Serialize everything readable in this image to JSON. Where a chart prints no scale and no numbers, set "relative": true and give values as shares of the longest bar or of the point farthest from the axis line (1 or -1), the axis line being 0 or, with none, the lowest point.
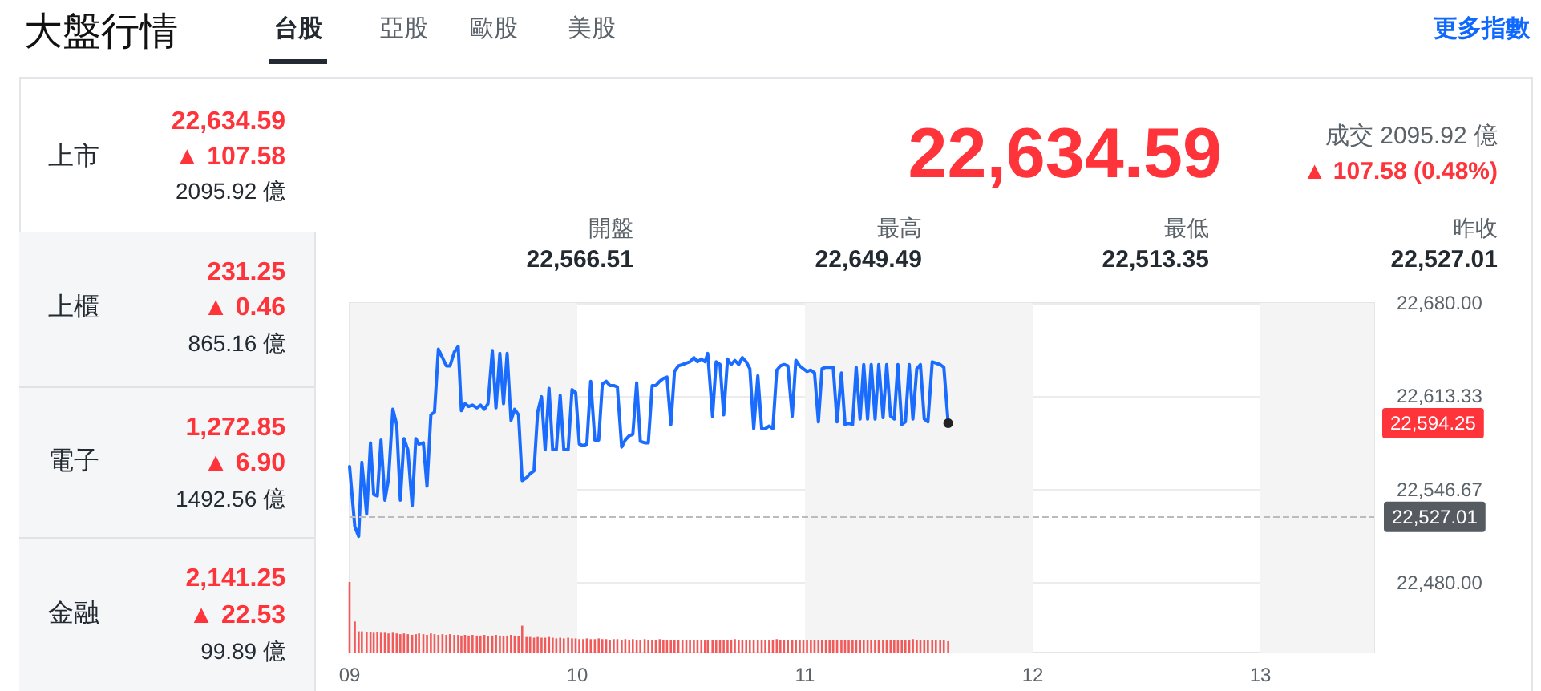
{
  "chart_data": [
    {
      "type": "line",
      "title": "大盤行情",
      "x": [
        9.0,
        9.023,
        9.04,
        9.054,
        9.075,
        9.092,
        9.106,
        9.122,
        9.138,
        9.155,
        9.171,
        9.19,
        9.207,
        9.223,
        9.239,
        9.256,
        9.275,
        9.291,
        9.305,
        9.324,
        9.34,
        9.357,
        9.373,
        9.39,
        9.408,
        9.425,
        9.441,
        9.46,
        9.477,
        9.491,
        9.507,
        9.523,
        9.54,
        9.559,
        9.575,
        9.592,
        9.608,
        9.627,
        9.643,
        9.66,
        9.676,
        9.692,
        9.709,
        9.725,
        9.742,
        9.758,
        9.777,
        9.793,
        9.81,
        9.826,
        9.843,
        9.859,
        9.876,
        9.892,
        9.908,
        9.925,
        9.941,
        9.96,
        9.977,
        9.993,
        10.009,
        10.026,
        10.042,
        10.059,
        10.077,
        10.094,
        10.11,
        10.127,
        10.143,
        10.16,
        10.176,
        10.195,
        10.211,
        10.228,
        10.244,
        10.261,
        10.277,
        10.296,
        10.312,
        10.329,
        10.345,
        10.362,
        10.378,
        10.394,
        10.411,
        10.427,
        10.444,
        10.462,
        10.479,
        10.495,
        10.512,
        10.528,
        10.545,
        10.561,
        10.573,
        10.594,
        10.61,
        10.627,
        10.643,
        10.66,
        10.676,
        10.692,
        10.709,
        10.725,
        10.742,
        10.758,
        10.775,
        10.793,
        10.81,
        10.826,
        10.843,
        10.859,
        10.876,
        10.892,
        10.908,
        10.925,
        10.944,
        10.96,
        10.977,
        10.993,
        11.009,
        11.026,
        11.042,
        11.059,
        11.075,
        11.092,
        11.108,
        11.124,
        11.141,
        11.16,
        11.176,
        11.192,
        11.209,
        11.225,
        11.242,
        11.258,
        11.275,
        11.291,
        11.308,
        11.324,
        11.343,
        11.359,
        11.376,
        11.392,
        11.408,
        11.425,
        11.441,
        11.458,
        11.474,
        11.491,
        11.507,
        11.524,
        11.54,
        11.559,
        11.575,
        11.594,
        11.61,
        11.629
      ],
      "series": [
        {
          "color": "#1a6cff",
          "values": [
            22563,
            22520,
            22513,
            22566,
            22529,
            22580,
            22543,
            22542,
            22582,
            22539,
            22554,
            22604,
            22593,
            22539,
            22583,
            22575,
            22535,
            22583,
            22579,
            22580,
            22549,
            22600,
            22602,
            22647,
            22641,
            22635,
            22635,
            22645,
            22649,
            22603,
            22608,
            22606,
            22607,
            22605,
            22607,
            22604,
            22608,
            22646,
            22605,
            22644,
            22608,
            22644,
            22596,
            22604,
            22600,
            22553,
            22555,
            22558,
            22560,
            22602,
            22613,
            22575,
            22619,
            22575,
            22575,
            22614,
            22575,
            22575,
            22618,
            22616,
            22579,
            22578,
            22579,
            22624,
            22582,
            22582,
            22622,
            22624,
            22621,
            22621,
            22620,
            22577,
            22582,
            22585,
            22586,
            22623,
            22581,
            22580,
            22580,
            22621,
            22621,
            22624,
            22626,
            22627,
            22593,
            22631,
            22635,
            22636,
            22637,
            22638,
            22641,
            22638,
            22640,
            22638,
            22644,
            22599,
            22638,
            22636,
            22600,
            22640,
            22636,
            22639,
            22636,
            22641,
            22638,
            22633,
            22590,
            22628,
            22590,
            22590,
            22592,
            22590,
            22632,
            22635,
            22636,
            22635,
            22599,
            22639,
            22635,
            22633,
            22631,
            22632,
            22630,
            22595,
            22633,
            22634,
            22634,
            22634,
            22595,
            22630,
            22593,
            22594,
            22593,
            22634,
            22597,
            22636,
            22597,
            22636,
            22597,
            22636,
            22598,
            22636,
            22599,
            22597,
            22636,
            22593,
            22595,
            22636,
            22597,
            22633,
            22636,
            22597,
            22595,
            22638,
            22637,
            22636,
            22634,
            22594
          ]
        }
      ],
      "xlim": [
        9,
        13.5
      ],
      "xticks": [
        {
          "value": 9,
          "label": "09"
        },
        10,
        11,
        12,
        13
      ],
      "ylim": [
        22430,
        22680
      ],
      "yticks": [
        {
          "value": 22480,
          "label": "22,480.00"
        },
        {
          "value": 22546.67,
          "label": "22,546.67"
        },
        {
          "value": 22613.33,
          "label": "22,613.33"
        },
        {
          "value": 22680,
          "label": "22,680.00"
        }
      ],
      "grid": "y",
      "ref_lines": [
        {
          "axis": "y",
          "value": 22527.01,
          "label": "22,527.01",
          "color": "#bbbbbb",
          "line_style": "dashed"
        }
      ],
      "bands": [
        {
          "axis": "x",
          "from": 9,
          "to": 10,
          "color": "#f4f4f4"
        },
        {
          "axis": "x",
          "from": 11,
          "to": 12,
          "color": "#f4f4f4"
        },
        {
          "axis": "x",
          "from": 13,
          "to": 13.5,
          "color": "#f4f4f4"
        }
      ],
      "annotations": [
        "台股",
        "亞股",
        "歐股",
        "美股",
        "更多指數",
        "上市",
        "22,634.59",
        "▲ 107.58",
        "2095.92 億",
        "上櫃",
        "231.25",
        "▲ 0.46",
        "865.16 億",
        "電子",
        "1,272.85",
        "▲ 6.90",
        "1492.56 億",
        "金融",
        "2,141.25",
        "▲ 22.53",
        "99.89 億",
        "22,634.59",
        "成交 2095.92 億",
        "▲ 107.58 (0.48%)",
        "開盤",
        "22,566.51",
        "最高",
        "22,649.49",
        "最低",
        "22,513.35",
        "昨收",
        "22,527.01",
        "22,594.25"
      ]
    },
    {
      "type": "bar",
      "relative": true,
      "xlim": [
        9,
        13.5
      ],
      "x": [
        9.0,
        9.023,
        9.04,
        9.054,
        9.075,
        9.092,
        9.106,
        9.122,
        9.138,
        9.155,
        9.171,
        9.19,
        9.207,
        9.223,
        9.239,
        9.256,
        9.275,
        9.291,
        9.305,
        9.324,
        9.34,
        9.357,
        9.373,
        9.39,
        9.408,
        9.425,
        9.441,
        9.46,
        9.477,
        9.491,
        9.507,
        9.523,
        9.54,
        9.559,
        9.575,
        9.592,
        9.608,
        9.627,
        9.643,
        9.66,
        9.676,
        9.692,
        9.709,
        9.725,
        9.742,
        9.758,
        9.777,
        9.793,
        9.81,
        9.826,
        9.843,
        9.859,
        9.876,
        9.892,
        9.908,
        9.925,
        9.941,
        9.96,
        9.977,
        9.993,
        10.009,
        10.026,
        10.042,
        10.059,
        10.077,
        10.094,
        10.11,
        10.127,
        10.143,
        10.16,
        10.176,
        10.195,
        10.211,
        10.228,
        10.244,
        10.261,
        10.277,
        10.296,
        10.312,
        10.329,
        10.345,
        10.362,
        10.378,
        10.394,
        10.411,
        10.427,
        10.444,
        10.462,
        10.479,
        10.495,
        10.512,
        10.528,
        10.545,
        10.561,
        10.573,
        10.594,
        10.61,
        10.627,
        10.643,
        10.66,
        10.676,
        10.692,
        10.709,
        10.725,
        10.742,
        10.758,
        10.775,
        10.793,
        10.81,
        10.826,
        10.843,
        10.859,
        10.876,
        10.892,
        10.908,
        10.925,
        10.944,
        10.96,
        10.977,
        10.993,
        11.009,
        11.026,
        11.042,
        11.059,
        11.075,
        11.092,
        11.108,
        11.124,
        11.141,
        11.16,
        11.176,
        11.192,
        11.209,
        11.225,
        11.242,
        11.258,
        11.275,
        11.291,
        11.308,
        11.324,
        11.343,
        11.359,
        11.376,
        11.392,
        11.408,
        11.425,
        11.441,
        11.458,
        11.474,
        11.491,
        11.507,
        11.524,
        11.54,
        11.559,
        11.575,
        11.594,
        11.61,
        11.629
      ],
      "series": [
        {
          "color": "#f25a5a",
          "values": [
            1,
            0.44,
            0.3,
            0.3,
            0.29,
            0.29,
            0.28,
            0.29,
            0.28,
            0.28,
            0.27,
            0.28,
            0.27,
            0.26,
            0.27,
            0.26,
            0.25,
            0.26,
            0.27,
            0.26,
            0.25,
            0.27,
            0.26,
            0.25,
            0.26,
            0.25,
            0.26,
            0.25,
            0.25,
            0.24,
            0.25,
            0.24,
            0.25,
            0.24,
            0.24,
            0.25,
            0.23,
            0.24,
            0.25,
            0.24,
            0.23,
            0.24,
            0.25,
            0.24,
            0.23,
            0.38,
            0.22,
            0.22,
            0.21,
            0.22,
            0.21,
            0.21,
            0.22,
            0.21,
            0.2,
            0.21,
            0.2,
            0.21,
            0.2,
            0.2,
            0.19,
            0.19,
            0.2,
            0.19,
            0.19,
            0.2,
            0.19,
            0.19,
            0.18,
            0.19,
            0.19,
            0.18,
            0.19,
            0.18,
            0.19,
            0.18,
            0.18,
            0.19,
            0.18,
            0.18,
            0.18,
            0.19,
            0.18,
            0.18,
            0.17,
            0.18,
            0.18,
            0.17,
            0.18,
            0.18,
            0.17,
            0.18,
            0.18,
            0.17,
            0.18,
            0.18,
            0.17,
            0.18,
            0.18,
            0.17,
            0.18,
            0.19,
            0.17,
            0.18,
            0.18,
            0.17,
            0.18,
            0.17,
            0.18,
            0.18,
            0.17,
            0.18,
            0.19,
            0.18,
            0.17,
            0.18,
            0.18,
            0.17,
            0.18,
            0.18,
            0.17,
            0.18,
            0.18,
            0.17,
            0.18,
            0.17,
            0.18,
            0.18,
            0.17,
            0.18,
            0.18,
            0.17,
            0.18,
            0.17,
            0.18,
            0.18,
            0.17,
            0.18,
            0.17,
            0.18,
            0.18,
            0.17,
            0.18,
            0.18,
            0.17,
            0.18,
            0.17,
            0.18,
            0.19,
            0.18,
            0.18,
            0.17,
            0.18,
            0.18,
            0.17,
            0.18,
            0.17,
            0.16
          ]
        }
      ]
    }
  ]
}
